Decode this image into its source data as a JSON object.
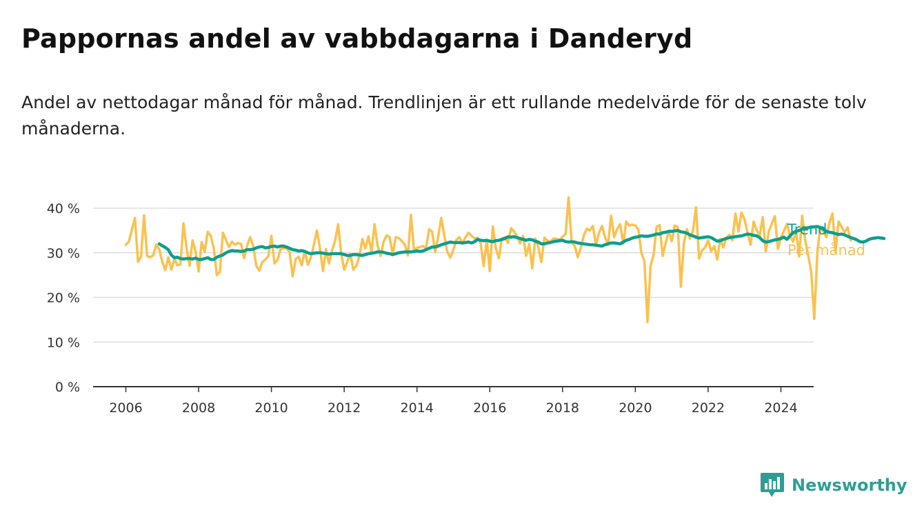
{
  "title": "Pappornas andel av vabbdagarna i Danderyd",
  "subtitle": "Andel av nettodagar månad för månad. Trendlinjen är ett rullande medelvärde för de senaste tolv månaderna.",
  "brand": "Newsworthy",
  "colors": {
    "trend": "#0e9e8e",
    "monthly": "#fbc14f",
    "grid": "#dddddd",
    "axis": "#333333",
    "brand": "#2e9e95"
  },
  "chart_data": {
    "type": "line",
    "ylim": [
      0,
      40
    ],
    "yticks": [
      0,
      10,
      20,
      30,
      40
    ],
    "ytick_labels": [
      "0 %",
      "10 %",
      "20 %",
      "30 %",
      "40 %"
    ],
    "xlim": [
      2005.1,
      2024.9
    ],
    "xticks": [
      2006,
      2008,
      2010,
      2012,
      2014,
      2016,
      2018,
      2020,
      2022,
      2024
    ],
    "xtick_labels": [
      "2006",
      "2008",
      "2010",
      "2012",
      "2014",
      "2016",
      "2018",
      "2020",
      "2022",
      "2024"
    ],
    "grid": true,
    "legend": "right",
    "series": [
      {
        "name": "Per månad",
        "color": "#fbc14f",
        "x_start": "2006-01",
        "values": [
          31.8,
          32.5,
          35.2,
          37.8,
          28.0,
          29.1,
          38.4,
          29.3,
          29.0,
          29.4,
          31.8,
          30.8,
          28.0,
          26.1,
          29.0,
          26.2,
          28.6,
          27.2,
          27.4,
          36.6,
          31.2,
          27.1,
          32.8,
          30.2,
          25.8,
          32.4,
          30.2,
          34.7,
          33.8,
          31.0,
          25.0,
          25.7,
          34.5,
          32.9,
          31.3,
          32.5,
          31.8,
          32.2,
          32.0,
          28.8,
          31.6,
          33.5,
          31.5,
          27.1,
          26.0,
          27.9,
          28.5,
          29.3,
          33.8,
          27.6,
          28.4,
          30.8,
          31.0,
          31.0,
          30.2,
          24.7,
          28.6,
          29.1,
          27.2,
          30.4,
          27.3,
          28.9,
          31.8,
          35.0,
          31.0,
          25.9,
          30.8,
          27.6,
          30.6,
          32.7,
          36.4,
          29.8,
          26.2,
          28.0,
          29.8,
          26.2,
          27.1,
          29.2,
          33.1,
          31.0,
          33.7,
          30.2,
          36.4,
          31.6,
          29.3,
          32.5,
          33.9,
          33.5,
          29.6,
          33.5,
          33.3,
          32.6,
          31.8,
          29.4,
          38.5,
          30.6,
          31.1,
          31.3,
          31.5,
          31.0,
          35.3,
          34.7,
          30.2,
          33.6,
          37.8,
          33.9,
          30.2,
          28.9,
          30.7,
          32.9,
          33.5,
          32.1,
          33.5,
          34.5,
          33.8,
          33.2,
          33.4,
          32.1,
          27.0,
          32.9,
          25.9,
          35.9,
          31.0,
          28.8,
          33.2,
          33.5,
          32.2,
          35.5,
          34.8,
          33.7,
          32.1,
          33.8,
          29.3,
          32.0,
          26.5,
          33.2,
          31.3,
          27.9,
          33.4,
          32.7,
          32.4,
          33.2,
          33.1,
          32.9,
          33.6,
          34.2,
          42.4,
          32.2,
          31.6,
          29.0,
          31.0,
          33.9,
          35.4,
          35.0,
          36.0,
          31.7,
          34.5,
          36.0,
          33.5,
          31.8,
          38.3,
          33.5,
          35.3,
          36.4,
          32.0,
          37.0,
          36.1,
          36.3,
          36.1,
          35.2,
          30.0,
          28.1,
          14.5,
          27.0,
          29.5,
          35.8,
          36.2,
          29.3,
          32.2,
          34.8,
          32.6,
          36.1,
          35.8,
          22.4,
          32.2,
          35.3,
          33.2,
          34.9,
          40.2,
          28.7,
          30.5,
          31.2,
          32.8,
          30.3,
          31.5,
          28.5,
          33.1,
          31.2,
          33.4,
          34.0,
          32.8,
          38.8,
          34.8,
          39.0,
          37.5,
          34.5,
          31.8,
          37.0,
          35.1,
          33.8,
          38.0,
          30.3,
          34.8,
          36.5,
          38.2,
          30.9,
          33.4,
          34.9,
          36.5,
          33.8,
          32.5,
          35.0,
          29.2,
          38.3,
          32.8,
          29.4,
          25.7,
          15.2,
          29.9,
          35.9,
          34.7,
          33.5,
          36.8,
          38.8,
          30.1,
          37.0,
          35.8,
          34.6,
          35.7,
          32.8
        ]
      },
      {
        "name": "Trend",
        "color": "#0e9e8e",
        "x_start": "2006-12",
        "values": [
          32.0,
          31.6,
          31.2,
          30.7,
          29.5,
          28.9,
          29.0,
          28.7,
          28.6,
          28.7,
          28.7,
          28.6,
          28.8,
          28.5,
          28.5,
          28.7,
          28.9,
          28.5,
          28.5,
          29.0,
          29.3,
          29.5,
          30.0,
          30.3,
          30.5,
          30.4,
          30.4,
          30.3,
          30.4,
          30.7,
          30.7,
          30.8,
          31.1,
          31.3,
          31.4,
          31.1,
          31.2,
          31.4,
          31.5,
          31.3,
          31.5,
          31.5,
          31.3,
          31.0,
          30.7,
          30.6,
          30.4,
          30.5,
          30.3,
          30.0,
          29.8,
          29.9,
          30.0,
          30.0,
          29.9,
          29.8,
          29.7,
          29.8,
          29.8,
          29.8,
          29.8,
          29.6,
          29.4,
          29.4,
          29.6,
          29.6,
          29.5,
          29.4,
          29.6,
          29.8,
          29.9,
          30.0,
          30.2,
          30.2,
          30.1,
          29.9,
          29.8,
          29.6,
          29.8,
          30.0,
          30.1,
          30.2,
          30.2,
          30.2,
          30.3,
          30.4,
          30.3,
          30.4,
          30.7,
          31.0,
          31.3,
          31.3,
          31.5,
          31.8,
          32.0,
          32.2,
          32.4,
          32.3,
          32.3,
          32.3,
          32.2,
          32.3,
          32.4,
          32.2,
          32.5,
          33.0,
          32.8,
          32.7,
          32.8,
          32.6,
          32.5,
          32.7,
          32.8,
          33.0,
          33.2,
          33.6,
          33.5,
          33.6,
          33.4,
          33.2,
          33.0,
          32.8,
          33.0,
          32.9,
          32.6,
          32.4,
          32.0,
          32.0,
          32.2,
          32.3,
          32.5,
          32.6,
          32.7,
          32.8,
          32.5,
          32.4,
          32.5,
          32.4,
          32.2,
          32.1,
          32.0,
          31.9,
          31.8,
          31.8,
          31.7,
          31.6,
          31.5,
          31.8,
          32.0,
          32.2,
          32.2,
          32.1,
          32.0,
          32.4,
          32.8,
          33.0,
          33.3,
          33.5,
          33.6,
          33.8,
          33.7,
          33.7,
          33.8,
          34.0,
          34.2,
          34.2,
          34.5,
          34.6,
          34.8,
          34.8,
          34.9,
          35.0,
          34.7,
          34.6,
          34.4,
          34.0,
          33.8,
          33.5,
          33.3,
          33.4,
          33.5,
          33.6,
          33.4,
          33.0,
          32.6,
          32.7,
          33.0,
          33.2,
          33.4,
          33.5,
          33.6,
          33.7,
          33.8,
          34.0,
          34.2,
          34.1,
          33.9,
          33.8,
          33.4,
          32.7,
          32.4,
          32.5,
          32.7,
          32.9,
          33.0,
          33.2,
          33.5,
          33.0,
          33.8,
          34.5,
          34.8,
          35.0,
          35.3,
          35.5,
          35.6,
          35.8,
          35.8,
          35.9,
          35.6,
          35.3,
          34.8,
          34.6,
          34.5,
          34.3,
          34.1,
          34.2,
          34.0,
          33.7,
          33.4,
          33.2,
          32.9,
          32.5,
          32.4,
          32.6,
          33.0,
          33.2,
          33.3,
          33.4,
          33.3,
          33.2
        ]
      }
    ]
  }
}
